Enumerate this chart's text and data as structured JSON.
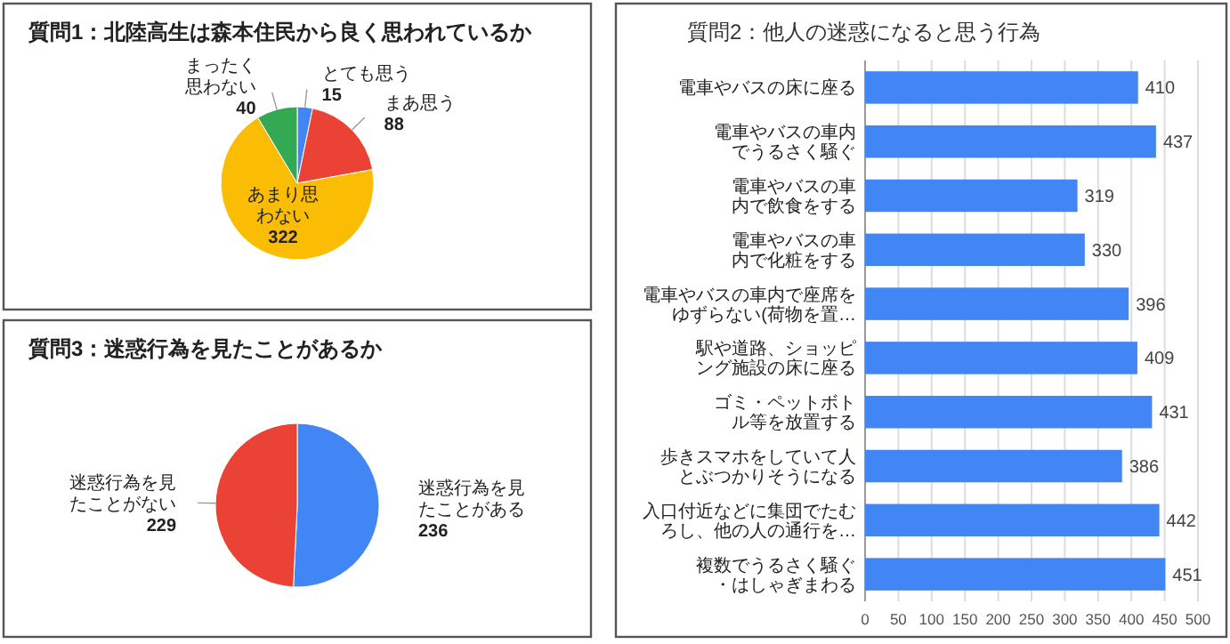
{
  "chart_data": [
    {
      "type": "pie",
      "title": "質問1：北陸高生は森本住民から良く思われているか",
      "categories": [
        "とても思う",
        "まあ思う",
        "あまり思わない",
        "まったく思わない"
      ],
      "values": [
        15,
        88,
        322,
        40
      ],
      "colors": [
        "#4285f4",
        "#ea4335",
        "#fbbc04",
        "#34a853"
      ],
      "data_labels": true
    },
    {
      "type": "bar",
      "orientation": "horizontal",
      "title": "質問2：他人の迷惑になると思う行為",
      "categories": [
        "電車やバスの床に座る",
        "電車やバスの車内でうるさく騒ぐ",
        "電車やバスの車内で飲食をする",
        "電車やバスの車内で化粧をする",
        "電車やバスの車内で座席をゆずらない(荷物を置…",
        "駅や道路、ショッピング施設の床に座る",
        "ゴミ・ペットボトル等を放置する",
        "歩きスマホをしていて人とぶつかりそうになる",
        "入口付近などに集団でたむろし、他の人の通行を…",
        "複数でうるさく騒ぐ・はしゃぎまわる"
      ],
      "values": [
        410,
        437,
        319,
        330,
        396,
        409,
        431,
        386,
        442,
        451
      ],
      "color": "#4285f4",
      "xlim": [
        0,
        500
      ],
      "xticks": [
        0,
        50,
        100,
        150,
        200,
        250,
        300,
        350,
        400,
        450,
        500
      ],
      "grid": "x",
      "data_labels": true
    },
    {
      "type": "pie",
      "title": "質問3：迷惑行為を見たことがあるか",
      "categories": [
        "迷惑行為を見たことがある",
        "迷惑行為を見たことがない"
      ],
      "values": [
        236,
        229
      ],
      "colors": [
        "#4285f4",
        "#ea4335"
      ],
      "data_labels": true
    }
  ]
}
